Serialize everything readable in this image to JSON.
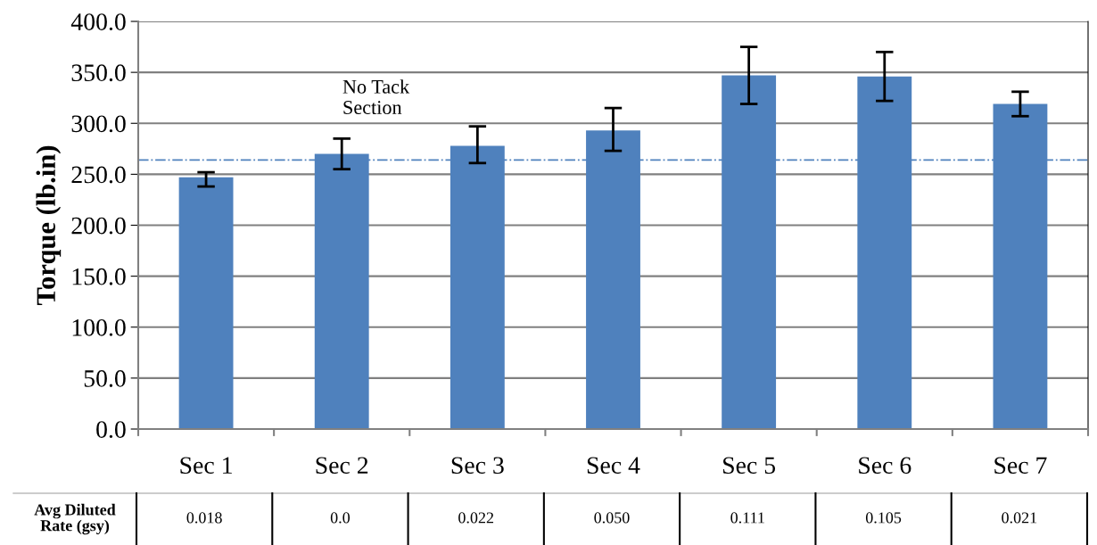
{
  "chart_data": {
    "type": "bar",
    "ylabel": "Torque (lb.in)",
    "categories": [
      "Sec 1",
      "Sec 2",
      "Sec 3",
      "Sec 4",
      "Sec 5",
      "Sec 6",
      "Sec 7"
    ],
    "values": [
      247,
      270,
      278,
      293,
      347,
      346,
      319
    ],
    "errors": [
      [
        238,
        252
      ],
      [
        255,
        285
      ],
      [
        261,
        297
      ],
      [
        273,
        315
      ],
      [
        319,
        375
      ],
      [
        322,
        370
      ],
      [
        307,
        331
      ]
    ],
    "color": "#4f81bd",
    "ylim": [
      0,
      400
    ],
    "yticks": [
      {
        "value": 0,
        "label": "0.0"
      },
      {
        "value": 50,
        "label": "50.0"
      },
      {
        "value": 100,
        "label": "100.0"
      },
      {
        "value": 150,
        "label": "150.0"
      },
      {
        "value": 200,
        "label": "200.0"
      },
      {
        "value": 250,
        "label": "250.0"
      },
      {
        "value": 300,
        "label": "300.0"
      },
      {
        "value": 350,
        "label": "350.0"
      },
      {
        "value": 400,
        "label": "400.0"
      }
    ],
    "grid": "y",
    "ref_lines": [
      {
        "axis": "y",
        "value": 264,
        "color": "#4f81bd",
        "line_style": "dashdot"
      }
    ],
    "annotations": [
      "No Tack\nSection",
      "Avg Diluted\nRate (gsy)",
      "0.018",
      "0.0",
      "0.022",
      "0.050",
      "0.111",
      "0.105",
      "0.021"
    ]
  }
}
